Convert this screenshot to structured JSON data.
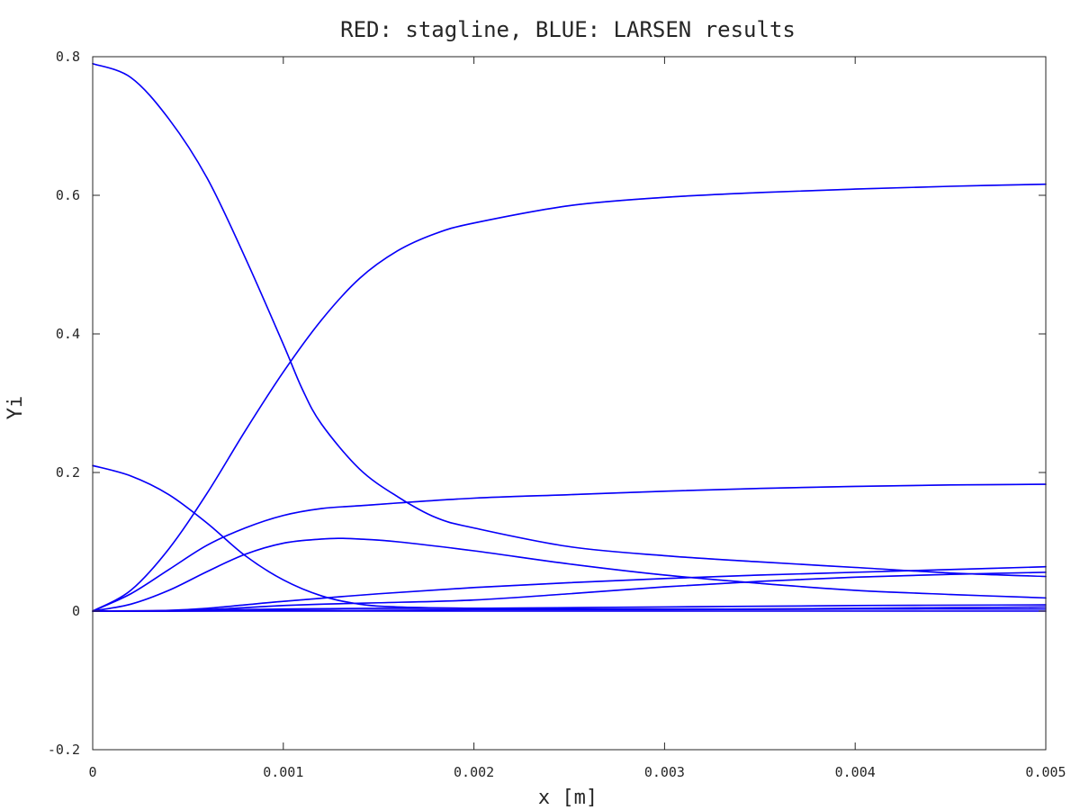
{
  "chart_data": {
    "type": "line",
    "title": "RED: stagline, BLUE: LARSEN results",
    "xlabel": "x [m]",
    "ylabel": "Yi",
    "xlim": [
      0,
      0.005
    ],
    "ylim": [
      -0.2,
      0.8
    ],
    "xticks": [
      0,
      0.001,
      0.002,
      0.003,
      0.004,
      0.005
    ],
    "xtick_labels": [
      "0",
      "0.001",
      "0.002",
      "0.003",
      "0.004",
      "0.005"
    ],
    "yticks": [
      -0.2,
      0,
      0.2,
      0.4,
      0.6,
      0.8
    ],
    "ytick_labels": [
      "-0.2",
      "0",
      "0.2",
      "0.4",
      "0.6",
      "0.8"
    ],
    "grid": false,
    "legend": "none",
    "colors": {
      "stagline": "#ff0000",
      "larsen": "#0000ff",
      "axes": "#262626"
    },
    "series": [
      {
        "color": "#0000ff",
        "x": [
          0,
          0.0002,
          0.0004,
          0.0006,
          0.0008,
          0.001,
          0.0011,
          0.0012,
          0.0014,
          0.0016,
          0.0018,
          0.002,
          0.0025,
          0.003,
          0.0035,
          0.004,
          0.0045,
          0.005
        ],
        "y": [
          0.79,
          0.77,
          0.71,
          0.625,
          0.51,
          0.385,
          0.32,
          0.27,
          0.205,
          0.165,
          0.135,
          0.12,
          0.093,
          0.08,
          0.071,
          0.063,
          0.055,
          0.05
        ]
      },
      {
        "color": "#0000ff",
        "x": [
          0,
          0.0002,
          0.0004,
          0.0006,
          0.0008,
          0.001,
          0.0012,
          0.0014,
          0.0016,
          0.0018,
          0.002,
          0.0025,
          0.003,
          0.0035,
          0.004,
          0.0045,
          0.005
        ],
        "y": [
          0,
          0.03,
          0.09,
          0.17,
          0.26,
          0.345,
          0.42,
          0.48,
          0.52,
          0.545,
          0.56,
          0.585,
          0.597,
          0.604,
          0.609,
          0.613,
          0.616
        ]
      },
      {
        "color": "#0000ff",
        "x": [
          0,
          0.0002,
          0.0004,
          0.0006,
          0.0008,
          0.001,
          0.0012,
          0.0014,
          0.0016,
          0.002,
          0.0025,
          0.003,
          0.0035,
          0.004,
          0.0045,
          0.005
        ],
        "y": [
          0.21,
          0.195,
          0.168,
          0.127,
          0.08,
          0.045,
          0.022,
          0.01,
          0.006,
          0.004,
          0.003,
          0.003,
          0.003,
          0.004,
          0.005,
          0.006
        ]
      },
      {
        "color": "#0000ff",
        "x": [
          0,
          0.0002,
          0.0004,
          0.0006,
          0.0008,
          0.001,
          0.0012,
          0.0014,
          0.0016,
          0.002,
          0.0025,
          0.003,
          0.0035,
          0.004,
          0.0045,
          0.005
        ],
        "y": [
          0,
          0.025,
          0.06,
          0.095,
          0.12,
          0.138,
          0.148,
          0.152,
          0.156,
          0.163,
          0.168,
          0.173,
          0.177,
          0.18,
          0.182,
          0.183
        ]
      },
      {
        "color": "#0000ff",
        "x": [
          0,
          0.0002,
          0.0004,
          0.0006,
          0.0008,
          0.001,
          0.0012,
          0.0013,
          0.0014,
          0.0016,
          0.002,
          0.0025,
          0.003,
          0.0035,
          0.004,
          0.0045,
          0.005
        ],
        "y": [
          0,
          0.01,
          0.03,
          0.057,
          0.082,
          0.098,
          0.104,
          0.105,
          0.104,
          0.1,
          0.087,
          0.068,
          0.052,
          0.04,
          0.03,
          0.024,
          0.019
        ]
      },
      {
        "color": "#0000ff",
        "x": [
          0,
          0.0002,
          0.0004,
          0.0006,
          0.0008,
          0.001,
          0.0015,
          0.002,
          0.0025,
          0.003,
          0.0035,
          0.004,
          0.0045,
          0.005
        ],
        "y": [
          0,
          0,
          0.001,
          0.004,
          0.009,
          0.014,
          0.025,
          0.034,
          0.041,
          0.047,
          0.052,
          0.056,
          0.06,
          0.064
        ]
      },
      {
        "color": "#0000ff",
        "x": [
          0,
          0.0004,
          0.0006,
          0.0008,
          0.001,
          0.0012,
          0.0015,
          0.002,
          0.0025,
          0.003,
          0.0035,
          0.004,
          0.0045,
          0.005
        ],
        "y": [
          0,
          0,
          0.002,
          0.005,
          0.008,
          0.01,
          0.012,
          0.016,
          0.025,
          0.035,
          0.043,
          0.049,
          0.053,
          0.056
        ]
      },
      {
        "color": "#0000ff",
        "x": [
          0,
          0.0005,
          0.001,
          0.0015,
          0.002,
          0.003,
          0.004,
          0.005
        ],
        "y": [
          0,
          0.001,
          0.003,
          0.004,
          0.004,
          0.006,
          0.008,
          0.009
        ]
      },
      {
        "color": "#0000ff",
        "x": [
          0,
          0.0005,
          0.001,
          0.0015,
          0.002,
          0.003,
          0.004,
          0.005
        ],
        "y": [
          0,
          0,
          0.001,
          0.001,
          0.002,
          0.002,
          0.003,
          0.003
        ]
      },
      {
        "color": "#0000ff",
        "x": [
          0,
          0.001,
          0.002,
          0.003,
          0.004,
          0.005
        ],
        "y": [
          0,
          0,
          0,
          0,
          0,
          0
        ]
      }
    ]
  }
}
